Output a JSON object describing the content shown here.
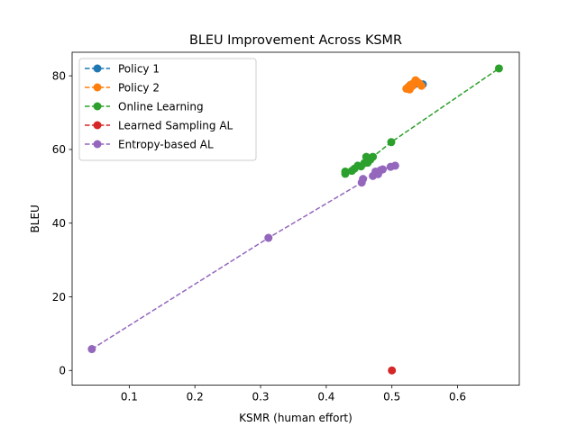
{
  "chart_data": {
    "type": "line",
    "title": "BLEU Improvement Across KSMR",
    "xlabel": "KSMR (human effort)",
    "ylabel": "BLEU",
    "xlim": [
      0.013,
      0.694
    ],
    "ylim": [
      -4.0,
      86.4
    ],
    "xticks": [
      0.1,
      0.2,
      0.3,
      0.4,
      0.5,
      0.6
    ],
    "xtick_labels": [
      "0.1",
      "0.2",
      "0.3",
      "0.4",
      "0.5",
      "0.6"
    ],
    "yticks": [
      0,
      20,
      40,
      60,
      80
    ],
    "ytick_labels": [
      "0",
      "20",
      "40",
      "60",
      "80"
    ],
    "grid": false,
    "legend_position": "upper-left",
    "series": [
      {
        "name": "Policy 1",
        "color": "#1f77b4",
        "points": [
          [
            0.528,
            77.5
          ],
          [
            0.535,
            77.8
          ],
          [
            0.541,
            77.9
          ],
          [
            0.547,
            77.7
          ]
        ]
      },
      {
        "name": "Policy 2",
        "color": "#ff7f0e",
        "points": [
          [
            0.522,
            76.5
          ],
          [
            0.525,
            77.0
          ],
          [
            0.527,
            76.3
          ],
          [
            0.529,
            77.6
          ],
          [
            0.531,
            77.2
          ],
          [
            0.533,
            78.0
          ],
          [
            0.536,
            78.8
          ],
          [
            0.539,
            78.3
          ],
          [
            0.542,
            77.9
          ],
          [
            0.545,
            77.3
          ]
        ]
      },
      {
        "name": "Online Learning",
        "color": "#2ca02c",
        "points": [
          [
            0.429,
            53.4
          ],
          [
            0.429,
            54.0
          ],
          [
            0.439,
            54.2
          ],
          [
            0.443,
            54.8
          ],
          [
            0.448,
            55.6
          ],
          [
            0.453,
            55.4
          ],
          [
            0.458,
            56.3
          ],
          [
            0.461,
            58.0
          ],
          [
            0.463,
            56.4
          ],
          [
            0.467,
            57.2
          ],
          [
            0.471,
            58.0
          ],
          [
            0.499,
            62.0
          ],
          [
            0.663,
            82.0
          ]
        ]
      },
      {
        "name": "Learned Sampling AL",
        "color": "#d62728",
        "points": [
          [
            0.5,
            0.0
          ]
        ]
      },
      {
        "name": "Entropy-based AL",
        "color": "#9467bd",
        "points": [
          [
            0.043,
            5.8
          ],
          [
            0.312,
            36.0
          ],
          [
            0.454,
            51.0
          ],
          [
            0.456,
            52.0
          ],
          [
            0.471,
            52.8
          ],
          [
            0.475,
            54.0
          ],
          [
            0.479,
            53.3
          ],
          [
            0.483,
            54.4
          ],
          [
            0.486,
            54.6
          ],
          [
            0.498,
            55.3
          ],
          [
            0.505,
            55.6
          ]
        ]
      }
    ]
  }
}
